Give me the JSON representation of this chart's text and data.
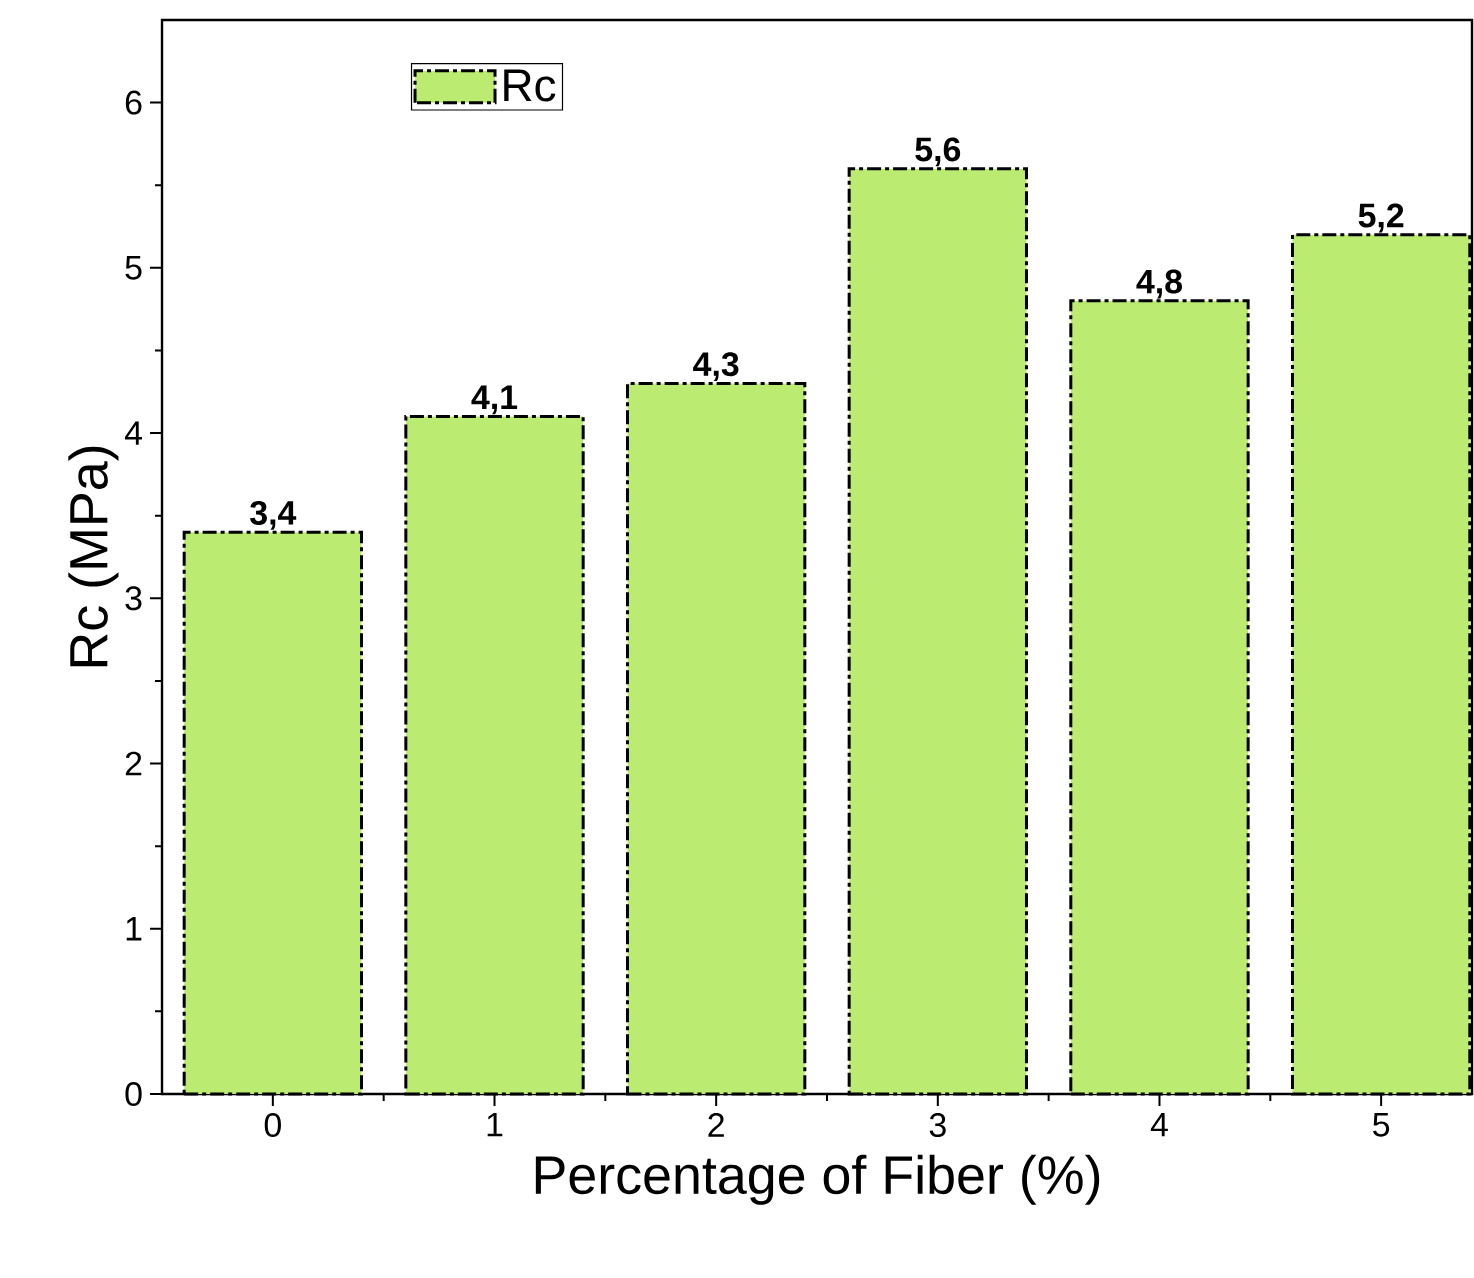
{
  "chart_data": {
    "type": "bar",
    "xlabel": "Percentage of Fiber (%)",
    "ylabel": "Rc (MPa)",
    "categories": [
      "0",
      "1",
      "2",
      "3",
      "4",
      "5"
    ],
    "series": [
      {
        "name": "Rc",
        "color": "#bbeb70",
        "values": [
          3.4,
          4.1,
          4.3,
          5.6,
          4.8,
          5.2
        ],
        "value_labels": [
          "3,4",
          "4,1",
          "4,3",
          "5,6",
          "4,8",
          "5,2"
        ]
      }
    ],
    "ylim": [
      0,
      6.5
    ],
    "yticks": [
      0,
      1,
      2,
      3,
      4,
      5,
      6
    ],
    "legend": "top left",
    "grid": false
  }
}
